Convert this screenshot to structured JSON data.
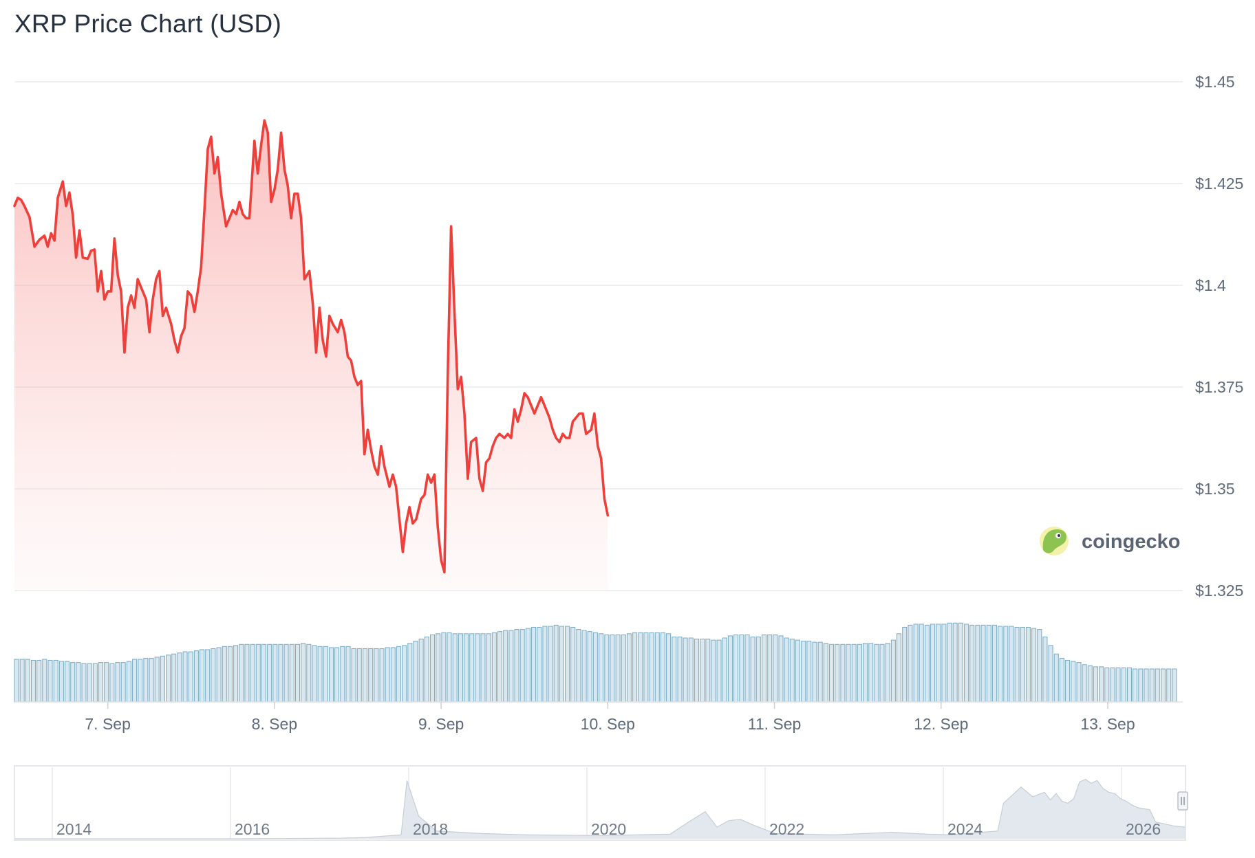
{
  "chart_data": {
    "type": "line",
    "title": "XRP Price Chart (USD)",
    "currency_prefix": "$",
    "ylim": [
      1.325,
      1.45
    ],
    "y_ticks": [
      "$1.45",
      "$1.425",
      "$1.4",
      "$1.375",
      "$1.35",
      "$1.325"
    ],
    "x_ticks": [
      "7. Sep",
      "8. Sep",
      "9. Sep",
      "10. Sep",
      "11. Sep",
      "12. Sep",
      "13. Sep"
    ],
    "x_range_days": [
      6.44,
      13.45
    ],
    "line_color": "#ef3f3a",
    "volume_color": "#7fb0c8",
    "grid": true,
    "price_series": [
      [
        6.44,
        1.4195
      ],
      [
        6.46,
        1.4215
      ],
      [
        6.48,
        1.421
      ],
      [
        6.5,
        1.4195
      ],
      [
        6.53,
        1.4168
      ],
      [
        6.56,
        1.4095
      ],
      [
        6.59,
        1.4112
      ],
      [
        6.62,
        1.4122
      ],
      [
        6.64,
        1.4095
      ],
      [
        6.66,
        1.4128
      ],
      [
        6.68,
        1.411
      ],
      [
        6.7,
        1.4215
      ],
      [
        6.73,
        1.4255
      ],
      [
        6.75,
        1.4195
      ],
      [
        6.77,
        1.4228
      ],
      [
        6.79,
        1.4172
      ],
      [
        6.81,
        1.4068
      ],
      [
        6.83,
        1.4135
      ],
      [
        6.85,
        1.4068
      ],
      [
        6.88,
        1.4065
      ],
      [
        6.9,
        1.4085
      ],
      [
        6.92,
        1.4088
      ],
      [
        6.94,
        1.3985
      ],
      [
        6.96,
        1.4035
      ],
      [
        6.98,
        1.3965
      ],
      [
        7.0,
        1.3985
      ],
      [
        7.02,
        1.3985
      ],
      [
        7.04,
        1.4115
      ],
      [
        7.06,
        1.4025
      ],
      [
        7.08,
        1.3985
      ],
      [
        7.1,
        1.3835
      ],
      [
        7.12,
        1.3945
      ],
      [
        7.14,
        1.3975
      ],
      [
        7.16,
        1.3945
      ],
      [
        7.18,
        1.4015
      ],
      [
        7.21,
        1.3985
      ],
      [
        7.23,
        1.3965
      ],
      [
        7.25,
        1.3885
      ],
      [
        7.27,
        1.3965
      ],
      [
        7.29,
        1.4015
      ],
      [
        7.31,
        1.4035
      ],
      [
        7.33,
        1.3925
      ],
      [
        7.35,
        1.3945
      ],
      [
        7.38,
        1.3905
      ],
      [
        7.4,
        1.3865
      ],
      [
        7.42,
        1.3835
      ],
      [
        7.44,
        1.3875
      ],
      [
        7.46,
        1.3895
      ],
      [
        7.48,
        1.3985
      ],
      [
        7.5,
        1.3975
      ],
      [
        7.52,
        1.3935
      ],
      [
        7.54,
        1.3985
      ],
      [
        7.56,
        1.4045
      ],
      [
        7.58,
        1.4185
      ],
      [
        7.6,
        1.4335
      ],
      [
        7.62,
        1.4365
      ],
      [
        7.64,
        1.4275
      ],
      [
        7.66,
        1.4315
      ],
      [
        7.68,
        1.4225
      ],
      [
        7.71,
        1.4145
      ],
      [
        7.73,
        1.4165
      ],
      [
        7.75,
        1.4185
      ],
      [
        7.77,
        1.4175
      ],
      [
        7.79,
        1.4205
      ],
      [
        7.81,
        1.4175
      ],
      [
        7.83,
        1.4165
      ],
      [
        7.85,
        1.4165
      ],
      [
        7.88,
        1.4355
      ],
      [
        7.9,
        1.4275
      ],
      [
        7.92,
        1.4345
      ],
      [
        7.94,
        1.4405
      ],
      [
        7.96,
        1.4375
      ],
      [
        7.98,
        1.4205
      ],
      [
        8.0,
        1.4235
      ],
      [
        8.02,
        1.4285
      ],
      [
        8.04,
        1.4375
      ],
      [
        8.06,
        1.4285
      ],
      [
        8.08,
        1.4245
      ],
      [
        8.1,
        1.4165
      ],
      [
        8.12,
        1.4225
      ],
      [
        8.14,
        1.4225
      ],
      [
        8.16,
        1.4165
      ],
      [
        8.18,
        1.4015
      ],
      [
        8.21,
        1.4035
      ],
      [
        8.23,
        1.3955
      ],
      [
        8.25,
        1.3835
      ],
      [
        8.27,
        1.3945
      ],
      [
        8.29,
        1.3865
      ],
      [
        8.31,
        1.3825
      ],
      [
        8.33,
        1.3925
      ],
      [
        8.35,
        1.3905
      ],
      [
        8.38,
        1.3885
      ],
      [
        8.4,
        1.3915
      ],
      [
        8.42,
        1.3885
      ],
      [
        8.44,
        1.3825
      ],
      [
        8.46,
        1.3815
      ],
      [
        8.48,
        1.3775
      ],
      [
        8.5,
        1.3755
      ],
      [
        8.52,
        1.3765
      ],
      [
        8.54,
        1.3585
      ],
      [
        8.56,
        1.3645
      ],
      [
        8.58,
        1.3595
      ],
      [
        8.6,
        1.3555
      ],
      [
        8.62,
        1.3535
      ],
      [
        8.64,
        1.3605
      ],
      [
        8.66,
        1.3555
      ],
      [
        8.69,
        1.3505
      ],
      [
        8.71,
        1.3535
      ],
      [
        8.73,
        1.3505
      ],
      [
        8.75,
        1.3425
      ],
      [
        8.77,
        1.3345
      ],
      [
        8.79,
        1.3415
      ],
      [
        8.81,
        1.3455
      ],
      [
        8.83,
        1.3415
      ],
      [
        8.85,
        1.3425
      ],
      [
        8.88,
        1.3475
      ],
      [
        8.9,
        1.3485
      ],
      [
        8.92,
        1.3535
      ],
      [
        8.94,
        1.3515
      ],
      [
        8.96,
        1.3535
      ],
      [
        8.98,
        1.3405
      ],
      [
        9.0,
        1.3325
      ],
      [
        9.02,
        1.3295
      ],
      [
        9.04,
        1.3785
      ],
      [
        9.06,
        1.4145
      ],
      [
        9.08,
        1.3935
      ],
      [
        9.1,
        1.3745
      ],
      [
        9.12,
        1.3775
      ],
      [
        9.14,
        1.3685
      ],
      [
        9.16,
        1.3525
      ],
      [
        9.18,
        1.3615
      ],
      [
        9.21,
        1.3625
      ],
      [
        9.23,
        1.3525
      ],
      [
        9.25,
        1.3495
      ],
      [
        9.27,
        1.3565
      ],
      [
        9.29,
        1.3575
      ],
      [
        9.31,
        1.3605
      ],
      [
        9.33,
        1.3625
      ],
      [
        9.35,
        1.3635
      ],
      [
        9.38,
        1.3625
      ],
      [
        9.4,
        1.3635
      ],
      [
        9.42,
        1.3625
      ],
      [
        9.44,
        1.3695
      ],
      [
        9.46,
        1.3665
      ],
      [
        9.48,
        1.3695
      ],
      [
        9.5,
        1.3735
      ],
      [
        9.52,
        1.3725
      ],
      [
        9.54,
        1.3705
      ],
      [
        9.56,
        1.3685
      ],
      [
        9.58,
        1.3705
      ],
      [
        9.6,
        1.3725
      ],
      [
        9.62,
        1.3705
      ],
      [
        9.65,
        1.3675
      ],
      [
        9.67,
        1.3645
      ],
      [
        9.69,
        1.3625
      ],
      [
        9.71,
        1.3615
      ],
      [
        9.73,
        1.3635
      ],
      [
        9.75,
        1.3625
      ],
      [
        9.77,
        1.3625
      ],
      [
        9.79,
        1.3665
      ],
      [
        9.81,
        1.3675
      ],
      [
        9.83,
        1.3685
      ],
      [
        9.85,
        1.3685
      ],
      [
        9.87,
        1.3635
      ],
      [
        9.9,
        1.3645
      ],
      [
        9.92,
        1.3685
      ],
      [
        9.94,
        1.3605
      ],
      [
        9.96,
        1.3575
      ],
      [
        9.98,
        1.3475
      ],
      [
        10.0,
        1.3435
      ]
    ],
    "volume_relative": [
      0.4,
      0.4,
      0.4,
      0.39,
      0.39,
      0.4,
      0.39,
      0.39,
      0.38,
      0.38,
      0.37,
      0.37,
      0.36,
      0.36,
      0.36,
      0.37,
      0.37,
      0.36,
      0.37,
      0.37,
      0.38,
      0.4,
      0.4,
      0.41,
      0.41,
      0.42,
      0.43,
      0.44,
      0.45,
      0.46,
      0.47,
      0.47,
      0.48,
      0.49,
      0.49,
      0.5,
      0.51,
      0.52,
      0.52,
      0.53,
      0.54,
      0.54,
      0.54,
      0.54,
      0.54,
      0.54,
      0.54,
      0.54,
      0.54,
      0.54,
      0.54,
      0.55,
      0.54,
      0.53,
      0.52,
      0.52,
      0.51,
      0.51,
      0.52,
      0.52,
      0.5,
      0.5,
      0.5,
      0.5,
      0.5,
      0.5,
      0.51,
      0.51,
      0.52,
      0.53,
      0.55,
      0.57,
      0.59,
      0.61,
      0.63,
      0.64,
      0.65,
      0.65,
      0.64,
      0.64,
      0.64,
      0.64,
      0.64,
      0.64,
      0.64,
      0.65,
      0.66,
      0.67,
      0.67,
      0.68,
      0.68,
      0.69,
      0.7,
      0.7,
      0.71,
      0.71,
      0.72,
      0.71,
      0.71,
      0.7,
      0.68,
      0.67,
      0.66,
      0.65,
      0.64,
      0.63,
      0.63,
      0.63,
      0.63,
      0.64,
      0.65,
      0.65,
      0.65,
      0.65,
      0.65,
      0.65,
      0.64,
      0.61,
      0.61,
      0.6,
      0.6,
      0.59,
      0.59,
      0.59,
      0.58,
      0.58,
      0.6,
      0.62,
      0.63,
      0.63,
      0.63,
      0.61,
      0.61,
      0.63,
      0.63,
      0.63,
      0.62,
      0.6,
      0.59,
      0.58,
      0.57,
      0.57,
      0.56,
      0.56,
      0.55,
      0.54,
      0.54,
      0.54,
      0.54,
      0.54,
      0.54,
      0.55,
      0.55,
      0.54,
      0.54,
      0.55,
      0.58,
      0.64,
      0.7,
      0.72,
      0.73,
      0.73,
      0.72,
      0.73,
      0.73,
      0.73,
      0.74,
      0.74,
      0.74,
      0.73,
      0.72,
      0.72,
      0.72,
      0.72,
      0.72,
      0.71,
      0.71,
      0.71,
      0.7,
      0.7,
      0.7,
      0.69,
      0.68,
      0.61,
      0.53,
      0.45,
      0.41,
      0.39,
      0.38,
      0.37,
      0.35,
      0.34,
      0.33,
      0.33,
      0.32,
      0.32,
      0.32,
      0.32,
      0.32,
      0.31,
      0.31,
      0.31,
      0.31,
      0.31,
      0.31,
      0.31,
      0.31
    ],
    "navigator": {
      "year_labels": [
        "2014",
        "2016",
        "2018",
        "2020",
        "2022",
        "2024",
        "2026"
      ],
      "series_relative": [
        [
          0.0,
          0.0
        ],
        [
          0.11,
          0.0
        ],
        [
          0.19,
          0.0
        ],
        [
          0.28,
          0.01
        ],
        [
          0.3,
          0.02
        ],
        [
          0.315,
          0.04
        ],
        [
          0.33,
          0.06
        ],
        [
          0.335,
          0.9
        ],
        [
          0.345,
          0.35
        ],
        [
          0.36,
          0.12
        ],
        [
          0.4,
          0.08
        ],
        [
          0.44,
          0.06
        ],
        [
          0.5,
          0.05
        ],
        [
          0.56,
          0.07
        ],
        [
          0.575,
          0.25
        ],
        [
          0.59,
          0.42
        ],
        [
          0.6,
          0.18
        ],
        [
          0.61,
          0.28
        ],
        [
          0.62,
          0.3
        ],
        [
          0.63,
          0.22
        ],
        [
          0.65,
          0.08
        ],
        [
          0.7,
          0.06
        ],
        [
          0.75,
          0.1
        ],
        [
          0.78,
          0.07
        ],
        [
          0.8,
          0.06
        ],
        [
          0.84,
          0.12
        ],
        [
          0.845,
          0.55
        ],
        [
          0.86,
          0.8
        ],
        [
          0.87,
          0.65
        ],
        [
          0.88,
          0.72
        ],
        [
          0.885,
          0.6
        ],
        [
          0.89,
          0.7
        ],
        [
          0.895,
          0.58
        ],
        [
          0.9,
          0.55
        ],
        [
          0.905,
          0.62
        ],
        [
          0.91,
          0.88
        ],
        [
          0.915,
          0.92
        ],
        [
          0.92,
          0.86
        ],
        [
          0.925,
          0.9
        ],
        [
          0.93,
          0.78
        ],
        [
          0.935,
          0.72
        ],
        [
          0.94,
          0.7
        ],
        [
          0.945,
          0.62
        ],
        [
          0.95,
          0.58
        ],
        [
          0.955,
          0.52
        ],
        [
          0.96,
          0.48
        ],
        [
          0.97,
          0.45
        ],
        [
          0.975,
          0.26
        ],
        [
          0.98,
          0.24
        ],
        [
          0.99,
          0.2
        ],
        [
          1.0,
          0.18
        ]
      ]
    }
  },
  "brand": {
    "name": "coingecko"
  }
}
